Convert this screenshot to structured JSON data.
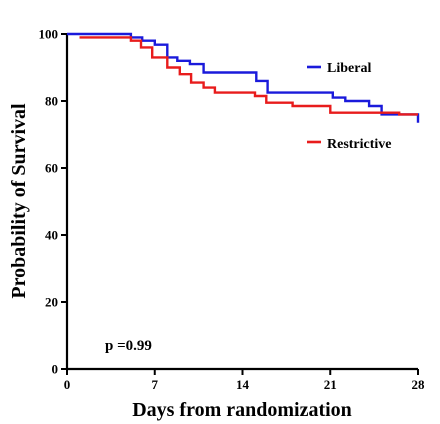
{
  "chart_data": {
    "type": "line",
    "step": true,
    "xlabel": "Days from randomization",
    "ylabel": "Probability of Survival",
    "xlim": [
      0,
      28
    ],
    "ylim": [
      0,
      100
    ],
    "xticks": [
      0,
      7,
      14,
      21,
      28
    ],
    "yticks": [
      0,
      20,
      40,
      60,
      80,
      100
    ],
    "grid": false,
    "legend_position": "right",
    "annotation": "p =0.99",
    "series": [
      {
        "name": "Liberal",
        "color": "#1a1adb",
        "points": [
          [
            0,
            100
          ],
          [
            5.1,
            100
          ],
          [
            5.1,
            99
          ],
          [
            6,
            99
          ],
          [
            6,
            98
          ],
          [
            7,
            98
          ],
          [
            7,
            96.8
          ],
          [
            8,
            96.8
          ],
          [
            8,
            93
          ],
          [
            8.8,
            93
          ],
          [
            8.8,
            92
          ],
          [
            9.8,
            92
          ],
          [
            9.8,
            91
          ],
          [
            10.9,
            91
          ],
          [
            10.9,
            88.5
          ],
          [
            15.1,
            88.5
          ],
          [
            15.1,
            86
          ],
          [
            16,
            86
          ],
          [
            16,
            82.5
          ],
          [
            21.2,
            82.5
          ],
          [
            21.2,
            81
          ],
          [
            22.2,
            81
          ],
          [
            22.2,
            80
          ],
          [
            24.1,
            80
          ],
          [
            24.1,
            78.5
          ],
          [
            25.1,
            78.5
          ],
          [
            25.1,
            76
          ],
          [
            28,
            76
          ],
          [
            28,
            73.5
          ]
        ]
      },
      {
        "name": "Restrictive",
        "color": "#e81c1c",
        "points": [
          [
            1,
            99
          ],
          [
            5.1,
            99
          ],
          [
            5.1,
            98
          ],
          [
            5.9,
            98
          ],
          [
            5.9,
            96
          ],
          [
            6.8,
            96
          ],
          [
            6.8,
            93
          ],
          [
            8,
            93
          ],
          [
            8,
            90
          ],
          [
            9,
            90
          ],
          [
            9,
            88
          ],
          [
            9.9,
            88
          ],
          [
            9.9,
            85.5
          ],
          [
            10.9,
            85.5
          ],
          [
            10.9,
            84
          ],
          [
            11.8,
            84
          ],
          [
            11.8,
            82.5
          ],
          [
            15,
            82.5
          ],
          [
            15,
            81.5
          ],
          [
            15.9,
            81.5
          ],
          [
            15.9,
            79.5
          ],
          [
            18,
            79.5
          ],
          [
            18,
            78.5
          ],
          [
            21,
            78.5
          ],
          [
            21,
            76.5
          ],
          [
            26.5,
            76.5
          ],
          [
            26.5,
            76
          ],
          [
            28,
            76
          ]
        ]
      }
    ]
  }
}
